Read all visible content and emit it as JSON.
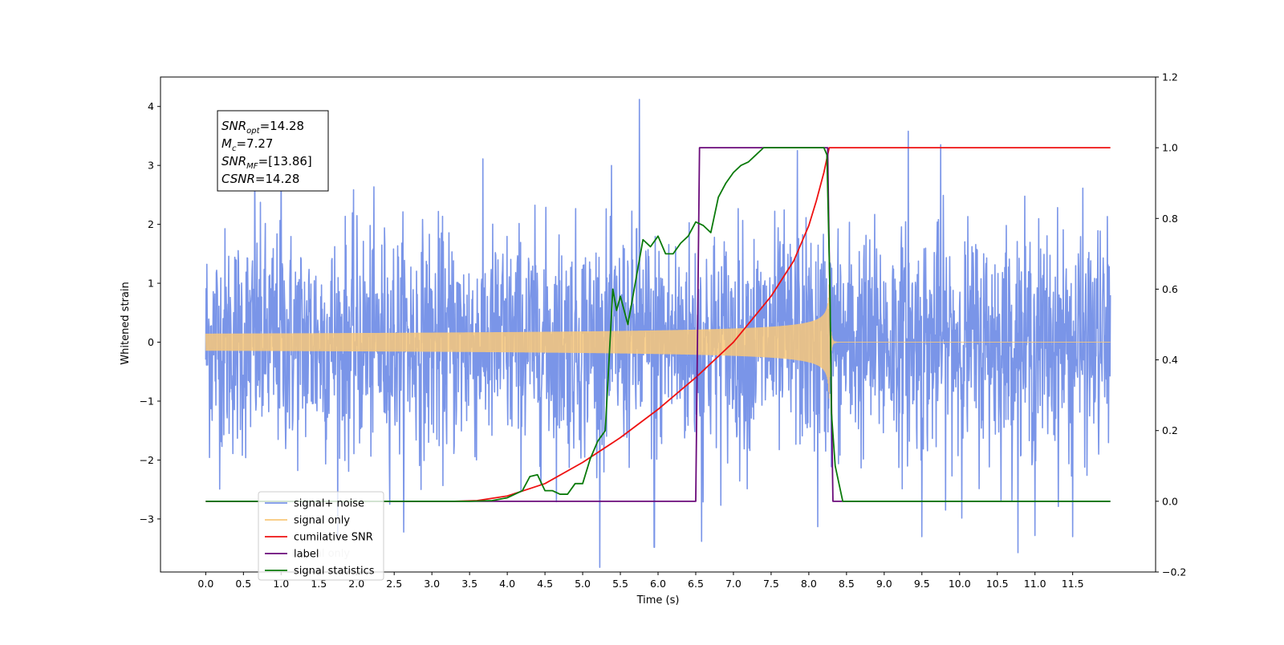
{
  "chart_data": {
    "type": "line",
    "title": "",
    "xlabel": "Time (s)",
    "ylabel": "Whitened strain",
    "xlim": [
      -0.6,
      12.6
    ],
    "ylim": [
      -3.9,
      4.5
    ],
    "y2lim": [
      -0.2,
      1.2
    ],
    "grid": false,
    "legend_position": "lower-left",
    "x_ticks": [
      0.0,
      0.5,
      1.0,
      1.5,
      2.0,
      2.5,
      3.0,
      3.5,
      4.0,
      4.5,
      5.0,
      5.5,
      6.0,
      6.5,
      7.0,
      7.5,
      8.0,
      8.5,
      9.0,
      9.5,
      10.0,
      10.5,
      11.0,
      11.5
    ],
    "x_tick_labels": [
      "0.0",
      "0.5",
      "1.0",
      "1.5",
      "2.0",
      "2.5",
      "3.0",
      "3.5",
      "4.0",
      "4.5",
      "5.0",
      "5.5",
      "6.0",
      "6.5",
      "7.0",
      "7.5",
      "8.0",
      "8.5",
      "9.0",
      "9.5",
      "10.0",
      "10.5",
      "11.0",
      "11.5"
    ],
    "y_ticks": [
      -3,
      -2,
      -1,
      0,
      1,
      2,
      3,
      4
    ],
    "y_tick_labels": [
      "−3",
      "−2",
      "−1",
      "0",
      "1",
      "2",
      "3",
      "4"
    ],
    "y2_ticks": [
      -0.2,
      0.0,
      0.2,
      0.4,
      0.6,
      0.8,
      1.0,
      1.2
    ],
    "y2_tick_labels": [
      "−0.2",
      "0.0",
      "0.2",
      "0.4",
      "0.6",
      "0.8",
      "1.0",
      "1.2"
    ],
    "annotation": {
      "lines": [
        {
          "base": "SNR",
          "sub": "opt",
          "rest": "=14.28"
        },
        {
          "base": "M",
          "sub": "c",
          "rest": "=7.27"
        },
        {
          "base": "SNR",
          "sub": "MF",
          "rest": "=[13.86]"
        },
        {
          "base": "CSNR",
          "sub": "",
          "rest": "=14.28"
        }
      ]
    },
    "legend": [
      {
        "label": "signal+ noise",
        "color": "#7a95e8"
      },
      {
        "label": "signal only",
        "color": "#f8c87a"
      },
      {
        "label": "cumilative SNR",
        "color": "#ee1111"
      },
      {
        "label": "label",
        "color": "#6a0a7a"
      },
      {
        "label": "signal statistics",
        "color": "#0a7a0a"
      }
    ],
    "legend_hidden_fragments": [
      "signal only",
      "signal"
    ],
    "series": [
      {
        "name": "signal+ noise",
        "axis": "left",
        "color": "#7a95e8",
        "kind": "noise",
        "x_range": [
          0.0,
          12.0
        ],
        "std": 1.0,
        "spikes": [
          {
            "x": 5.75,
            "y": 4.12
          },
          {
            "x": 9.32,
            "y": 3.58
          },
          {
            "x": 9.75,
            "y": 3.35
          },
          {
            "x": 6.58,
            "y": -3.38
          },
          {
            "x": 5.95,
            "y": -3.48
          },
          {
            "x": 8.12,
            "y": -3.13
          },
          {
            "x": 9.5,
            "y": -3.3
          },
          {
            "x": 11.0,
            "y": -3.28
          },
          {
            "x": 11.5,
            "y": -3.3
          },
          {
            "x": 1.0,
            "y": 3.27
          },
          {
            "x": 0.65,
            "y": 3.0
          },
          {
            "x": 7.85,
            "y": 3.25
          }
        ]
      },
      {
        "name": "signal only",
        "axis": "left",
        "color": "#f8c87a",
        "kind": "chirp",
        "x_range": [
          0.0,
          12.0
        ],
        "merger_x": 8.27,
        "peak_amplitude": 1.0
      },
      {
        "name": "cumilative SNR",
        "axis": "right",
        "color": "#ee1111",
        "x": [
          0.0,
          3.3,
          3.6,
          4.0,
          4.5,
          5.0,
          5.5,
          6.0,
          6.5,
          7.0,
          7.5,
          7.8,
          8.0,
          8.1,
          8.2,
          8.27,
          8.3,
          12.0
        ],
        "y": [
          0.0,
          0.0,
          0.002,
          0.015,
          0.05,
          0.11,
          0.18,
          0.26,
          0.35,
          0.45,
          0.58,
          0.68,
          0.78,
          0.85,
          0.93,
          1.0,
          1.0,
          1.0
        ]
      },
      {
        "name": "label",
        "axis": "right",
        "color": "#6a0a7a",
        "x": [
          0.0,
          6.5,
          6.55,
          8.25,
          8.32,
          12.0
        ],
        "y": [
          0.0,
          0.0,
          1.0,
          1.0,
          0.0,
          0.0
        ]
      },
      {
        "name": "signal statistics",
        "axis": "right",
        "color": "#0a7a0a",
        "x": [
          0.0,
          3.5,
          3.8,
          4.0,
          4.2,
          4.3,
          4.4,
          4.5,
          4.6,
          4.7,
          4.8,
          4.9,
          5.0,
          5.1,
          5.2,
          5.3,
          5.4,
          5.45,
          5.5,
          5.6,
          5.7,
          5.8,
          5.9,
          6.0,
          6.1,
          6.2,
          6.3,
          6.4,
          6.5,
          6.6,
          6.7,
          6.8,
          6.9,
          7.0,
          7.1,
          7.2,
          7.3,
          7.4,
          7.5,
          7.6,
          7.8,
          8.0,
          8.1,
          8.2,
          8.24,
          8.28,
          8.3,
          8.35,
          8.4,
          8.45,
          8.5,
          12.0
        ],
        "y": [
          0.0,
          0.0,
          0.002,
          0.01,
          0.03,
          0.07,
          0.075,
          0.03,
          0.03,
          0.02,
          0.02,
          0.05,
          0.05,
          0.12,
          0.17,
          0.2,
          0.6,
          0.54,
          0.58,
          0.5,
          0.62,
          0.74,
          0.72,
          0.75,
          0.7,
          0.7,
          0.73,
          0.75,
          0.79,
          0.78,
          0.76,
          0.86,
          0.9,
          0.93,
          0.95,
          0.96,
          0.98,
          1.0,
          1.0,
          1.0,
          1.0,
          1.0,
          1.0,
          1.0,
          0.98,
          0.6,
          0.25,
          0.1,
          0.05,
          0.0,
          0.0,
          0.0
        ]
      }
    ]
  }
}
